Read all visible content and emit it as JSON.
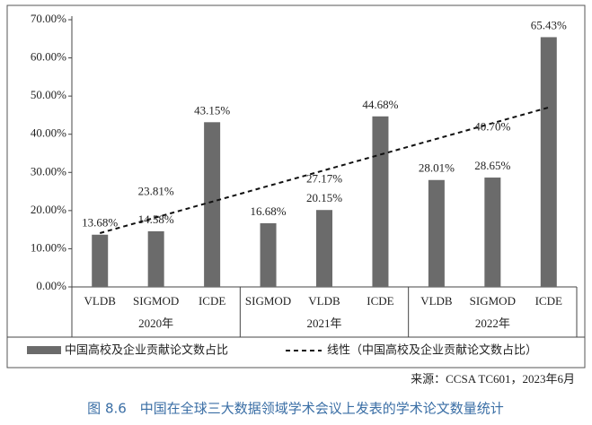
{
  "chart_data": {
    "type": "bar",
    "categories": [
      "VLDB",
      "SIGMOD",
      "ICDE",
      "SIGMOD",
      "VLDB",
      "ICDE",
      "VLDB",
      "SIGMOD",
      "ICDE"
    ],
    "groups": [
      "2020年",
      "2021年",
      "2022年"
    ],
    "series": [
      {
        "name": "中国高校及企业贡献论文数占比",
        "color": "#6b6b6b",
        "values": [
          13.68,
          14.58,
          43.15,
          16.68,
          20.15,
          44.68,
          28.01,
          28.65,
          65.43
        ],
        "value_labels": [
          "13.68%",
          "14.58%",
          "43.15%",
          "16.68%",
          "20.15%",
          "44.68%",
          "28.01%",
          "28.65%",
          "65.43%"
        ]
      }
    ],
    "trendline": {
      "name": "线性（中国高校及企业贡献论文数占比）",
      "color": "#111111"
    },
    "group_averages": {
      "values": [
        23.81,
        27.17,
        40.7
      ],
      "labels": [
        "23.81%",
        "27.17%",
        "40.70%"
      ]
    },
    "ylim": [
      0,
      70
    ],
    "yticks": [
      {
        "value": 0,
        "label": "0.00%"
      },
      {
        "value": 10,
        "label": "10.00%"
      },
      {
        "value": 20,
        "label": "20.00%"
      },
      {
        "value": 30,
        "label": "30.00%"
      },
      {
        "value": 40,
        "label": "40.00%"
      },
      {
        "value": 50,
        "label": "50.00%"
      },
      {
        "value": 60,
        "label": "60.00%"
      },
      {
        "value": 70,
        "label": "70.00%"
      }
    ],
    "grid": false,
    "source": "来源：CCSA TC601，2023年6月",
    "caption": "图 8.6　中国在全球三大数据领域学术会议上发表的学术论文数量统计"
  }
}
